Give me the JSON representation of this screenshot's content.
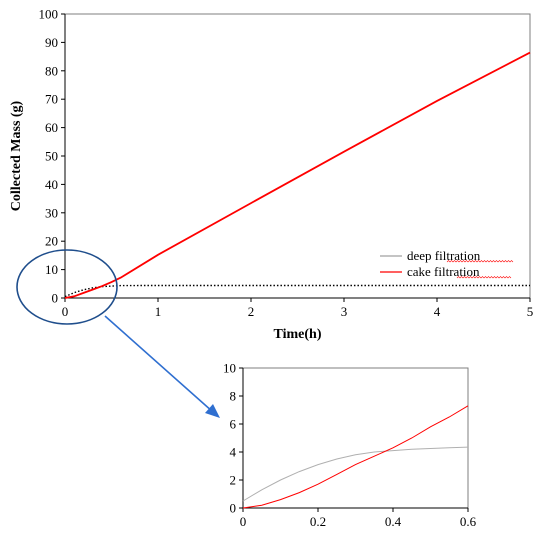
{
  "chart_data": [
    {
      "type": "line",
      "title": "",
      "xlabel": "Time(h)",
      "ylabel": "Collected Mass (g)",
      "xlim": [
        0,
        5
      ],
      "ylim": [
        0,
        100
      ],
      "xticks": [
        "0",
        "1",
        "2",
        "3",
        "4",
        "5"
      ],
      "yticks": [
        "0",
        "10",
        "20",
        "30",
        "40",
        "50",
        "60",
        "70",
        "80",
        "90",
        "100"
      ],
      "grid": false,
      "legend_position": "right",
      "series": [
        {
          "name": "deep filtration",
          "color": "#000000",
          "style": "dotted",
          "x": [
            0,
            0.05,
            0.1,
            0.2,
            0.3,
            0.4,
            0.5,
            0.6,
            0.8,
            1,
            2,
            3,
            4,
            5
          ],
          "values": [
            0.5,
            1.2,
            1.9,
            2.9,
            3.6,
            4.0,
            4.2,
            4.35,
            4.4,
            4.4,
            4.4,
            4.4,
            4.4,
            4.4
          ]
        },
        {
          "name": "cake filtration",
          "color": "#ff0000",
          "style": "solid",
          "x": [
            0,
            0.1,
            0.2,
            0.3,
            0.4,
            0.5,
            0.6,
            1,
            2,
            3,
            4,
            5
          ],
          "values": [
            0,
            0.6,
            1.8,
            3.0,
            4.2,
            5.6,
            7.2,
            15.2,
            33.4,
            51.5,
            69.4,
            86.4
          ]
        }
      ]
    },
    {
      "type": "line",
      "title": "",
      "xlabel": "",
      "ylabel": "",
      "xlim": [
        0,
        0.6
      ],
      "ylim": [
        0,
        10
      ],
      "xticks": [
        "0",
        "0.2",
        "0.4",
        "0.6"
      ],
      "yticks": [
        "0",
        "2",
        "4",
        "6",
        "8",
        "10"
      ],
      "grid": false,
      "series": [
        {
          "color": "#b0b0b0",
          "style": "solid",
          "x": [
            0,
            0.05,
            0.1,
            0.15,
            0.2,
            0.25,
            0.3,
            0.35,
            0.4,
            0.45,
            0.5,
            0.55,
            0.6
          ],
          "values": [
            0.5,
            1.3,
            2.0,
            2.6,
            3.1,
            3.5,
            3.8,
            4.0,
            4.1,
            4.2,
            4.25,
            4.3,
            4.35
          ]
        },
        {
          "color": "#ff0000",
          "style": "solid",
          "x": [
            0,
            0.05,
            0.1,
            0.15,
            0.2,
            0.25,
            0.3,
            0.35,
            0.4,
            0.45,
            0.5,
            0.55,
            0.6
          ],
          "values": [
            0,
            0.2,
            0.6,
            1.1,
            1.7,
            2.4,
            3.1,
            3.7,
            4.3,
            5.0,
            5.8,
            6.5,
            7.3
          ]
        }
      ]
    }
  ],
  "annotation": {
    "ellipse_color": "#1f4e8c",
    "arrow_color": "#2f6fd0"
  }
}
